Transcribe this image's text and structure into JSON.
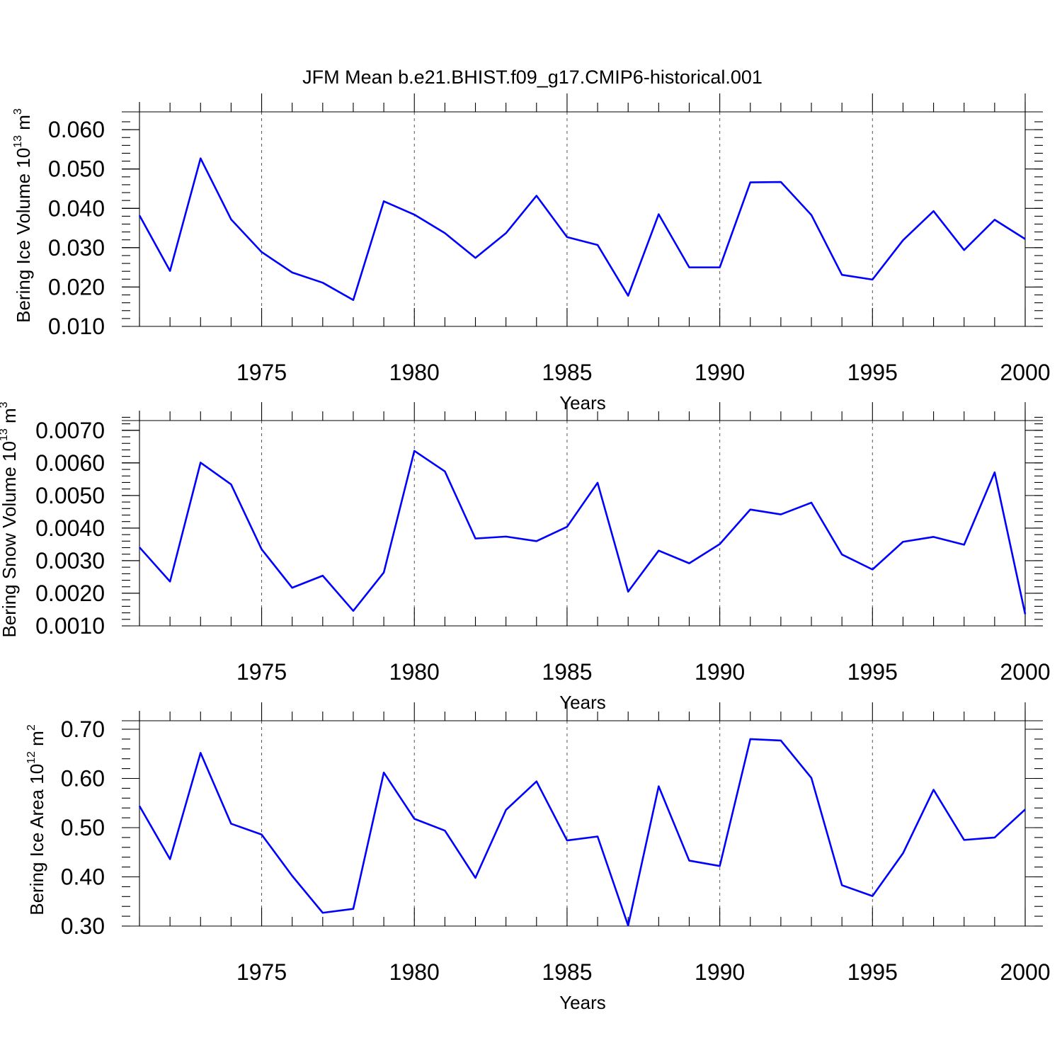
{
  "figure_title": "JFM Mean b.e21.BHIST.f09_g17.CMIP6-historical.001",
  "colors": {
    "series": "#0000ff",
    "axes": "#000000",
    "grid": "#555555"
  },
  "chart_data": [
    {
      "type": "line",
      "ylabel": "Bering Ice Volume 10",
      "ylabel_exp": "13",
      "ylabel_unit": " m",
      "ylabel_unit_exp": "3",
      "xlabel": "Years",
      "xlim": [
        1971,
        2000
      ],
      "ylim": [
        0.01,
        0.062
      ],
      "x_ticks": [
        1975,
        1980,
        1985,
        1990,
        1995,
        2000
      ],
      "x_tick_labels": [
        "1975",
        "1980",
        "1985",
        "1990",
        "1995",
        "2000"
      ],
      "y_ticks": [
        0.01,
        0.02,
        0.03,
        0.04,
        0.05,
        0.06
      ],
      "y_tick_labels": [
        "0.010",
        "0.020",
        "0.030",
        "0.040",
        "0.050",
        "0.060"
      ],
      "y_minor_step": 0.002,
      "grid": "vertical dashed at major x ticks",
      "x": [
        1971,
        1972,
        1973,
        1974,
        1975,
        1976,
        1977,
        1978,
        1979,
        1980,
        1981,
        1982,
        1983,
        1984,
        1985,
        1986,
        1987,
        1988,
        1989,
        1990,
        1991,
        1992,
        1993,
        1994,
        1995,
        1996,
        1997,
        1998,
        1999,
        2000
      ],
      "values": [
        0.0382,
        0.0241,
        0.0527,
        0.0372,
        0.0289,
        0.0237,
        0.0211,
        0.0167,
        0.0418,
        0.0384,
        0.0337,
        0.0274,
        0.0337,
        0.0432,
        0.0327,
        0.0307,
        0.0178,
        0.0385,
        0.025,
        0.025,
        0.0466,
        0.0467,
        0.0383,
        0.0231,
        0.0219,
        0.0319,
        0.0393,
        0.0294,
        0.0371,
        0.0322
      ]
    },
    {
      "type": "line",
      "ylabel": "Bering Snow Volume 10",
      "ylabel_exp": "13",
      "ylabel_unit": " m",
      "ylabel_unit_exp": "3",
      "xlabel": "Years",
      "xlim": [
        1971,
        2000
      ],
      "ylim": [
        0.001,
        0.0073
      ],
      "x_ticks": [
        1975,
        1980,
        1985,
        1990,
        1995,
        2000
      ],
      "x_tick_labels": [
        "1975",
        "1980",
        "1985",
        "1990",
        "1995",
        "2000"
      ],
      "y_ticks": [
        0.001,
        0.002,
        0.003,
        0.004,
        0.005,
        0.006,
        0.007
      ],
      "y_tick_labels": [
        "0.0010",
        "0.0020",
        "0.0030",
        "0.0040",
        "0.0050",
        "0.0060",
        "0.0070"
      ],
      "y_minor_step": 0.0002,
      "grid": "vertical dashed at major x ticks",
      "x": [
        1971,
        1972,
        1973,
        1974,
        1975,
        1976,
        1977,
        1978,
        1979,
        1980,
        1981,
        1982,
        1983,
        1984,
        1985,
        1986,
        1987,
        1988,
        1989,
        1990,
        1991,
        1992,
        1993,
        1994,
        1995,
        1996,
        1997,
        1998,
        1999,
        2000
      ],
      "values": [
        0.00341,
        0.00236,
        0.00601,
        0.00534,
        0.00335,
        0.00217,
        0.00254,
        0.00146,
        0.00264,
        0.00637,
        0.00574,
        0.00368,
        0.00374,
        0.0036,
        0.00404,
        0.00539,
        0.00205,
        0.00331,
        0.00292,
        0.00351,
        0.00457,
        0.00442,
        0.00478,
        0.00319,
        0.00273,
        0.00358,
        0.00373,
        0.00349,
        0.00571,
        0.00136
      ]
    },
    {
      "type": "line",
      "ylabel": "Bering Ice Area 10",
      "ylabel_exp": "12",
      "ylabel_unit": " m",
      "ylabel_unit_exp": "2",
      "xlabel": "Years",
      "xlim": [
        1971,
        2000
      ],
      "ylim": [
        0.3,
        0.7
      ],
      "x_ticks": [
        1975,
        1980,
        1985,
        1990,
        1995,
        2000
      ],
      "x_tick_labels": [
        "1975",
        "1980",
        "1985",
        "1990",
        "1995",
        "2000"
      ],
      "y_ticks": [
        0.3,
        0.4,
        0.5,
        0.6,
        0.7
      ],
      "y_tick_labels": [
        "0.30",
        "0.40",
        "0.50",
        "0.60",
        "0.70"
      ],
      "y_minor_step": 0.02,
      "grid": "vertical dashed at major x ticks",
      "x": [
        1971,
        1972,
        1973,
        1974,
        1975,
        1976,
        1977,
        1978,
        1979,
        1980,
        1981,
        1982,
        1983,
        1984,
        1985,
        1986,
        1987,
        1988,
        1989,
        1990,
        1991,
        1992,
        1993,
        1994,
        1995,
        1996,
        1997,
        1998,
        1999,
        2000
      ],
      "values": [
        0.544,
        0.436,
        0.652,
        0.508,
        0.486,
        0.402,
        0.327,
        0.335,
        0.612,
        0.518,
        0.494,
        0.398,
        0.536,
        0.594,
        0.474,
        0.482,
        0.301,
        0.584,
        0.433,
        0.422,
        0.68,
        0.677,
        0.601,
        0.383,
        0.361,
        0.448,
        0.577,
        0.475,
        0.48,
        0.537
      ]
    }
  ]
}
